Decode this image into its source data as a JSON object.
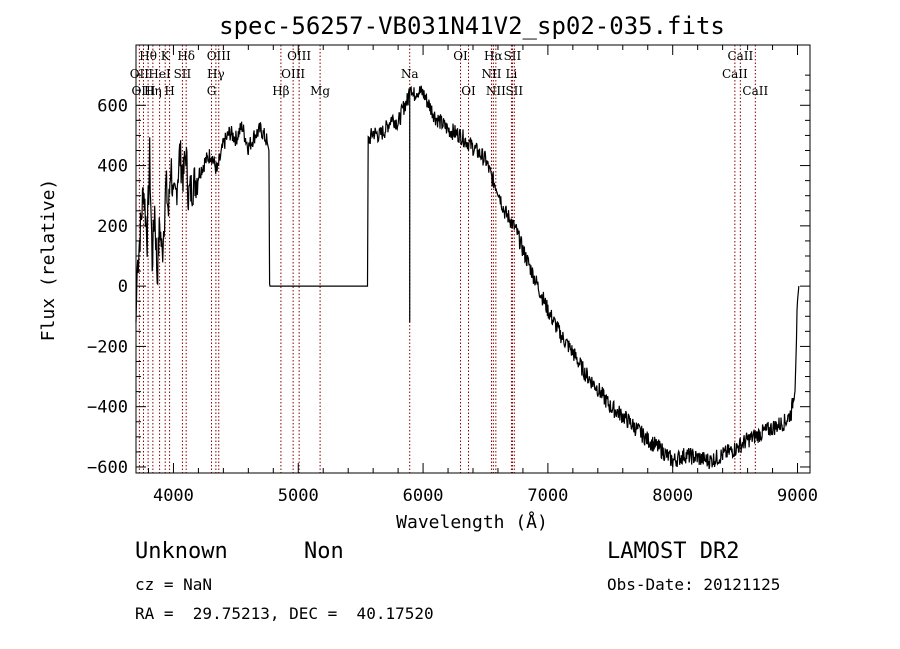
{
  "chart_data": {
    "type": "line",
    "title": "spec-56257-VB031N41V2_sp02-035.fits",
    "xlabel": "Wavelength (Å)",
    "ylabel": "Flux (relative)",
    "xlim": [
      3700,
      9100
    ],
    "ylim": [
      -620,
      800
    ],
    "xticks": [
      4000,
      5000,
      6000,
      7000,
      8000,
      9000
    ],
    "xtick_labels": [
      "4000",
      "5000",
      "6000",
      "7000",
      "8000",
      "9000"
    ],
    "yticks": [
      -600,
      -400,
      -200,
      0,
      200,
      400,
      600
    ],
    "ytick_labels": [
      "−600",
      "−400",
      "−200",
      "0",
      "200",
      "400",
      "600"
    ],
    "grid": false,
    "series": [
      {
        "x": [
          3700,
          3710,
          3740,
          3760,
          3790,
          3810,
          3830,
          3850,
          3870,
          3890,
          3910,
          3940,
          3960,
          3980,
          4000,
          4020,
          4050,
          4080,
          4100,
          4120,
          4150,
          4200,
          4250,
          4300,
          4350,
          4400,
          4450,
          4500,
          4550,
          4600,
          4650,
          4700,
          4750,
          4765,
          4770,
          5000,
          5300,
          5555,
          5560,
          5600,
          5650,
          5700,
          5750,
          5800,
          5850,
          5880,
          5900,
          5920,
          5950,
          6000,
          6050,
          6100,
          6200,
          6300,
          6400,
          6500,
          6550,
          6600,
          6650,
          6700,
          6750,
          6800,
          6900,
          7000,
          7100,
          7200,
          7300,
          7400,
          7500,
          7600,
          7700,
          7800,
          7900,
          8000,
          8100,
          8200,
          8300,
          8400,
          8500,
          8600,
          8700,
          8800,
          8900,
          8950,
          8980,
          9000,
          9010
        ],
        "y": [
          -120,
          60,
          210,
          330,
          160,
          430,
          80,
          260,
          30,
          210,
          100,
          340,
          240,
          420,
          270,
          300,
          440,
          360,
          450,
          300,
          330,
          370,
          410,
          440,
          380,
          470,
          510,
          490,
          530,
          460,
          500,
          520,
          480,
          450,
          0,
          0,
          0,
          0,
          480,
          510,
          500,
          520,
          560,
          540,
          600,
          620,
          680,
          630,
          650,
          640,
          600,
          560,
          520,
          500,
          460,
          420,
          360,
          320,
          250,
          220,
          180,
          120,
          20,
          -80,
          -160,
          -220,
          -290,
          -340,
          -400,
          -430,
          -470,
          -510,
          -540,
          -580,
          -560,
          -570,
          -580,
          -560,
          -540,
          -510,
          -490,
          -470,
          -450,
          -420,
          -330,
          -50,
          0
        ]
      }
    ],
    "line_markers": [
      {
        "label": "Hθ",
        "x": 3797,
        "row": 1
      },
      {
        "label": "OII",
        "x": 3727,
        "row": 2
      },
      {
        "label": "OIII",
        "x": 3760,
        "row": 3
      },
      {
        "label": "Hη",
        "x": 3835,
        "row": 3
      },
      {
        "label": "HeI",
        "x": 3889,
        "row": 2
      },
      {
        "label": "K",
        "x": 3934,
        "row": 1
      },
      {
        "label": "H",
        "x": 3969,
        "row": 3
      },
      {
        "label": "SII",
        "x": 4072,
        "row": 2
      },
      {
        "label": "Hδ",
        "x": 4102,
        "row": 1
      },
      {
        "label": "OIII",
        "x": 4363,
        "row": 1
      },
      {
        "label": "Hγ",
        "x": 4340,
        "row": 2
      },
      {
        "label": "G",
        "x": 4305,
        "row": 3
      },
      {
        "label": "Hβ",
        "x": 4861,
        "row": 3
      },
      {
        "label": "OIII",
        "x": 5007,
        "row": 1
      },
      {
        "label": "OIII",
        "x": 4959,
        "row": 2
      },
      {
        "label": "Mg",
        "x": 5175,
        "row": 3
      },
      {
        "label": "Na",
        "x": 5893,
        "row": 2
      },
      {
        "label": "OI",
        "x": 6300,
        "row": 1
      },
      {
        "label": "OI",
        "x": 6364,
        "row": 3
      },
      {
        "label": "Hα",
        "x": 6563,
        "row": 1
      },
      {
        "label": "NII",
        "x": 6548,
        "row": 2
      },
      {
        "label": "NII",
        "x": 6583,
        "row": 3
      },
      {
        "label": "SII",
        "x": 6716,
        "row": 1
      },
      {
        "label": "Li",
        "x": 6708,
        "row": 2
      },
      {
        "label": "SII",
        "x": 6731,
        "row": 3
      },
      {
        "label": "CaII",
        "x": 8542,
        "row": 1
      },
      {
        "label": "CaII",
        "x": 8498,
        "row": 2
      },
      {
        "label": "CaII",
        "x": 8662,
        "row": 3
      }
    ]
  },
  "info": {
    "classification": "Unknown",
    "subclass": "Non",
    "survey": "LAMOST DR2",
    "redshift": "cz = NaN",
    "obs_date": "Obs-Date: 20121125",
    "coords": "RA =  29.75213, DEC =  40.17520"
  },
  "colors": {
    "spectrum": "#000000",
    "marker": "#8b0000"
  }
}
